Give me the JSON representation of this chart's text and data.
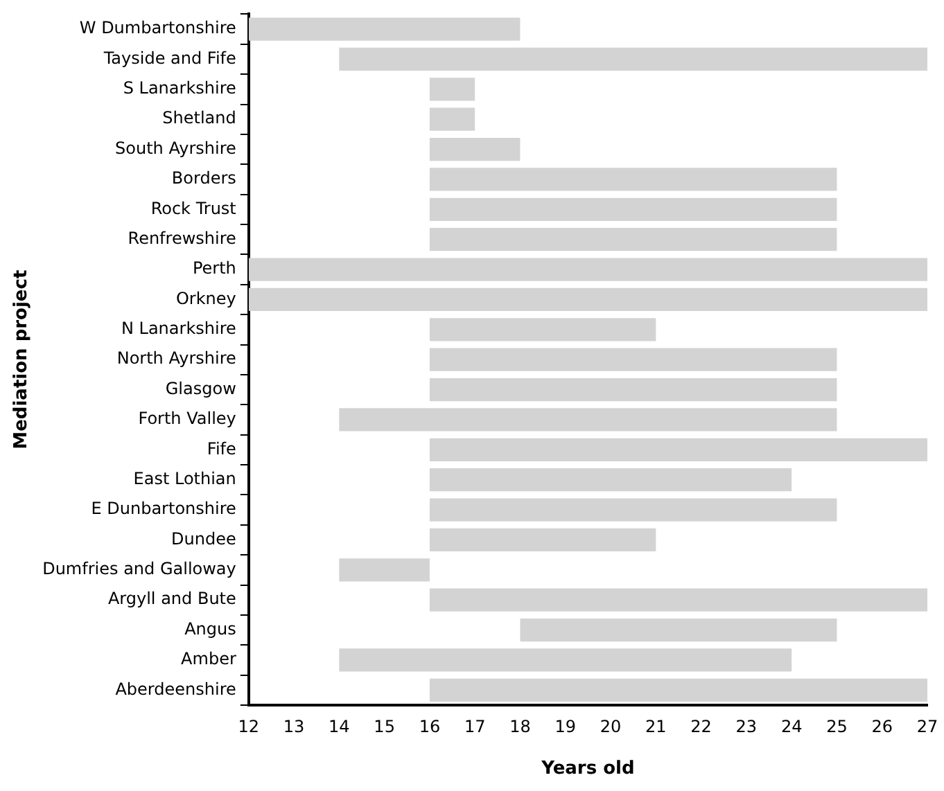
{
  "chart_data": {
    "type": "bar",
    "orientation": "horizontal",
    "xlabel": "Years old",
    "ylabel": "Mediation project",
    "categories": [
      "W Dumbartonshire",
      "Tayside and Fife",
      "S Lanarkshire",
      "Shetland",
      "South Ayrshire",
      "Borders",
      "Rock Trust",
      "Renfrewshire",
      "Perth",
      "Orkney",
      "N Lanarkshire",
      "North Ayrshire",
      "Glasgow",
      "Forth Valley",
      "Fife",
      "East Lothian",
      "E Dunbartonshire",
      "Dundee",
      "Dumfries and Galloway",
      "Argyll and Bute",
      "Angus",
      "Amber",
      "Aberdeenshire"
    ],
    "base": [
      12,
      14,
      16,
      16,
      16,
      16,
      16,
      16,
      12,
      12,
      16,
      16,
      16,
      14,
      16,
      16,
      16,
      16,
      14,
      16,
      18,
      14,
      16
    ],
    "values": [
      6,
      13,
      1,
      1,
      2,
      9,
      9,
      9,
      15,
      15,
      5,
      9,
      9,
      11,
      11,
      8,
      9,
      5,
      2,
      11,
      7,
      10,
      11
    ],
    "color": "#d3d3d3",
    "xlim": [
      12,
      27
    ],
    "xticks": [
      12,
      13,
      14,
      15,
      16,
      17,
      18,
      19,
      20,
      21,
      22,
      23,
      24,
      25,
      26,
      27
    ]
  }
}
